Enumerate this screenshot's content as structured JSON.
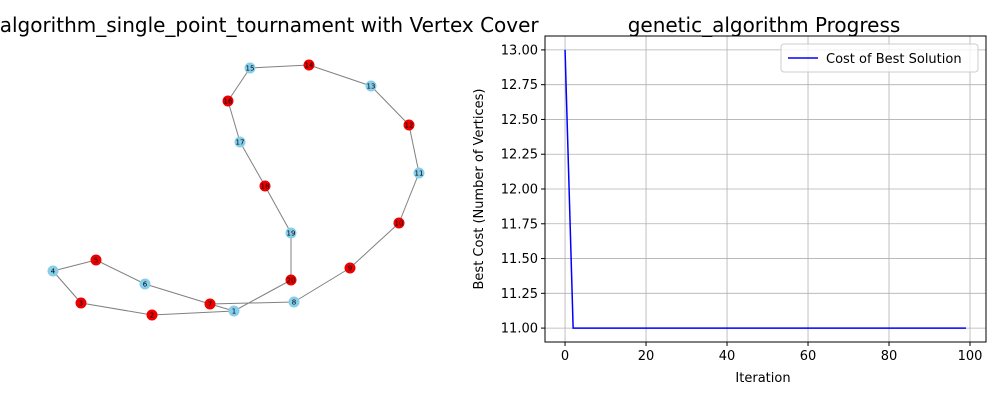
{
  "graph_panel": {
    "title": "genetic_algorithm_single_point_tournament with Vertex Cover",
    "cover_color": "#ee0000",
    "non_cover_color": "#87ceeb",
    "edge_color": "#808080"
  },
  "chart_data": {
    "type": "line",
    "title": "genetic_algorithm Progress",
    "xlabel": "Iteration",
    "ylabel": "Best Cost (Number of Vertices)",
    "xlim": [
      -4.95,
      103.95
    ],
    "ylim": [
      10.9,
      13.1
    ],
    "xticks": [
      "0",
      "20",
      "40",
      "60",
      "80",
      "100"
    ],
    "yticks": [
      "11.00",
      "11.25",
      "11.50",
      "11.75",
      "12.00",
      "12.25",
      "12.50",
      "12.75",
      "13.00"
    ],
    "grid": true,
    "legend_position": "top-right",
    "series": [
      {
        "name": "Cost of Best Solution",
        "color": "#0000ff",
        "x": [
          0,
          1,
          2,
          99
        ],
        "y": [
          13,
          12,
          11,
          11
        ]
      }
    ]
  }
}
